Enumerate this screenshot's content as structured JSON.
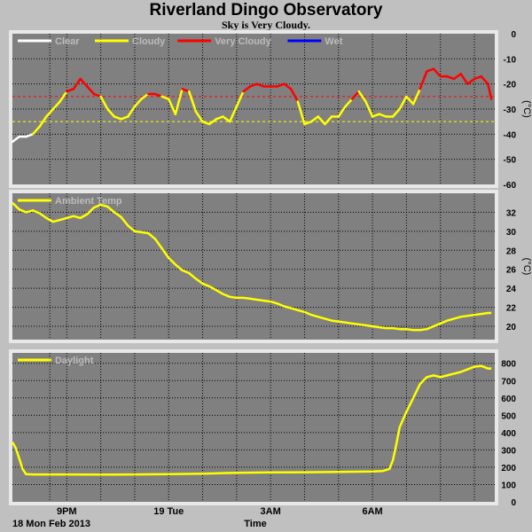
{
  "header": {
    "title": "Riverland Dingo Observatory",
    "subtitle": "Sky is Very Cloudy."
  },
  "footer": {
    "date_label": "18 Mon Feb 2013",
    "xlabel": "Time"
  },
  "colors": {
    "panel_bg": "#808080",
    "frame_bg": "#c0c0c0",
    "grid": "#000000",
    "clear": "#ffffff",
    "cloudy": "#ffff00",
    "very_cloudy": "#ff0000",
    "wet": "#0000ff"
  },
  "chart_data": [
    {
      "type": "line",
      "panel": "sky",
      "ylabel": "(°C)",
      "ylim": [
        -60,
        0
      ],
      "yticks": [
        0,
        -10,
        -20,
        -30,
        -40,
        -50,
        -60
      ],
      "xlim": [
        19.4,
        33.6
      ],
      "legend": [
        "Clear",
        "Cloudy",
        "Very Cloudy",
        "Wet"
      ],
      "thresholds": [
        {
          "value": -25,
          "color": "#ff0000",
          "style": "dashed"
        },
        {
          "value": -35,
          "color": "#ffff00",
          "style": "dashed"
        }
      ],
      "series": [
        {
          "name": "Sky",
          "x": [
            19.4,
            19.6,
            19.8,
            20.0,
            20.2,
            20.4,
            20.6,
            20.8,
            21.0,
            21.2,
            21.4,
            21.6,
            21.8,
            22.0,
            22.2,
            22.4,
            22.6,
            22.8,
            23.0,
            23.2,
            23.4,
            23.6,
            23.8,
            24.0,
            24.2,
            24.4,
            24.6,
            24.8,
            25.0,
            25.2,
            25.4,
            25.6,
            25.8,
            26.0,
            26.2,
            26.4,
            26.6,
            26.8,
            27.0,
            27.2,
            27.4,
            27.6,
            27.8,
            28.0,
            28.2,
            28.4,
            28.6,
            28.8,
            29.0,
            29.2,
            29.4,
            29.6,
            29.8,
            30.0,
            30.2,
            30.4,
            30.6,
            30.8,
            31.0,
            31.2,
            31.4,
            31.6,
            31.8,
            32.0,
            32.2,
            32.4,
            32.6,
            32.8,
            33.0,
            33.2,
            33.4,
            33.5
          ],
          "y": [
            -43,
            -41,
            -41,
            -40,
            -37,
            -33,
            -30,
            -27,
            -23,
            -22,
            -18,
            -21,
            -24,
            -25,
            -30,
            -33,
            -34,
            -33,
            -29,
            -26,
            -24,
            -24,
            -25,
            -26,
            -32,
            -22,
            -23,
            -31,
            -35,
            -36,
            -34,
            -33,
            -35,
            -29,
            -23,
            -21,
            -20,
            -21,
            -21,
            -21,
            -20,
            -22,
            -27,
            -36,
            -35,
            -33,
            -36,
            -33,
            -33,
            -29,
            -26,
            -23,
            -27,
            -33,
            -32,
            -33,
            -33,
            -30,
            -25,
            -28,
            -22,
            -15,
            -14,
            -17,
            -17,
            -18,
            -16,
            -20,
            -18,
            -17,
            -20,
            -26
          ]
        }
      ]
    },
    {
      "type": "line",
      "panel": "temp",
      "ylabel": "(°C)",
      "ylim": [
        18.6,
        34.0
      ],
      "yticks": [
        32,
        30,
        28,
        26,
        24,
        22,
        20
      ],
      "xlim": [
        19.4,
        33.6
      ],
      "legend": [
        "Ambient Temp"
      ],
      "series": [
        {
          "name": "Ambient Temp",
          "x": [
            19.4,
            19.6,
            19.8,
            20.0,
            20.2,
            20.4,
            20.6,
            20.8,
            21.0,
            21.2,
            21.4,
            21.6,
            21.8,
            22.0,
            22.2,
            22.4,
            22.6,
            22.8,
            23.0,
            23.2,
            23.4,
            23.6,
            23.8,
            24.0,
            24.2,
            24.4,
            24.6,
            24.8,
            25.0,
            25.2,
            25.4,
            25.6,
            25.8,
            26.0,
            26.2,
            26.4,
            26.6,
            26.8,
            27.0,
            27.2,
            27.4,
            27.6,
            27.8,
            28.0,
            28.2,
            28.4,
            28.6,
            28.8,
            29.0,
            29.2,
            29.4,
            29.6,
            29.8,
            30.0,
            30.2,
            30.4,
            30.6,
            30.8,
            31.0,
            31.2,
            31.4,
            31.6,
            31.8,
            32.0,
            32.2,
            32.4,
            32.6,
            32.8,
            33.0,
            33.2,
            33.4,
            33.5
          ],
          "y": [
            33.0,
            32.3,
            32.0,
            32.2,
            31.9,
            31.4,
            31.0,
            31.2,
            31.4,
            31.6,
            31.4,
            31.8,
            32.5,
            32.8,
            32.6,
            32.0,
            31.5,
            30.6,
            30.0,
            29.9,
            29.8,
            29.2,
            28.2,
            27.2,
            26.5,
            25.9,
            25.6,
            25.0,
            24.5,
            24.2,
            23.8,
            23.4,
            23.1,
            23.0,
            23.0,
            22.9,
            22.8,
            22.7,
            22.6,
            22.4,
            22.1,
            21.9,
            21.7,
            21.5,
            21.2,
            21.0,
            20.8,
            20.6,
            20.5,
            20.4,
            20.3,
            20.2,
            20.1,
            20.0,
            19.9,
            19.8,
            19.8,
            19.7,
            19.7,
            19.6,
            19.6,
            19.7,
            20.0,
            20.3,
            20.6,
            20.8,
            21.0,
            21.1,
            21.2,
            21.3,
            21.4,
            21.4
          ]
        }
      ]
    },
    {
      "type": "line",
      "panel": "daylight",
      "ylim": [
        0,
        860
      ],
      "yticks": [
        800,
        700,
        600,
        500,
        400,
        300,
        200,
        100,
        0
      ],
      "xlim": [
        19.4,
        33.6
      ],
      "xticks": [
        {
          "x": 21.0,
          "label": "9PM"
        },
        {
          "x": 24.0,
          "label": "19 Tue"
        },
        {
          "x": 27.0,
          "label": "3AM"
        },
        {
          "x": 30.0,
          "label": "6AM"
        }
      ],
      "legend": [
        "Daylight"
      ],
      "series": [
        {
          "name": "Daylight",
          "x": [
            19.4,
            19.5,
            19.6,
            19.7,
            19.8,
            20.0,
            20.5,
            21.0,
            22.0,
            23.0,
            24.0,
            25.0,
            26.0,
            27.0,
            28.0,
            29.0,
            30.0,
            30.3,
            30.5,
            30.6,
            30.7,
            30.8,
            31.0,
            31.2,
            31.4,
            31.6,
            31.8,
            32.0,
            32.2,
            32.4,
            32.6,
            32.8,
            33.0,
            33.2,
            33.4,
            33.5
          ],
          "y": [
            345,
            310,
            250,
            190,
            160,
            158,
            158,
            158,
            157,
            158,
            160,
            163,
            168,
            170,
            171,
            173,
            175,
            178,
            190,
            240,
            330,
            430,
            520,
            600,
            680,
            720,
            730,
            720,
            730,
            740,
            750,
            765,
            780,
            785,
            770,
            770
          ]
        }
      ]
    }
  ]
}
